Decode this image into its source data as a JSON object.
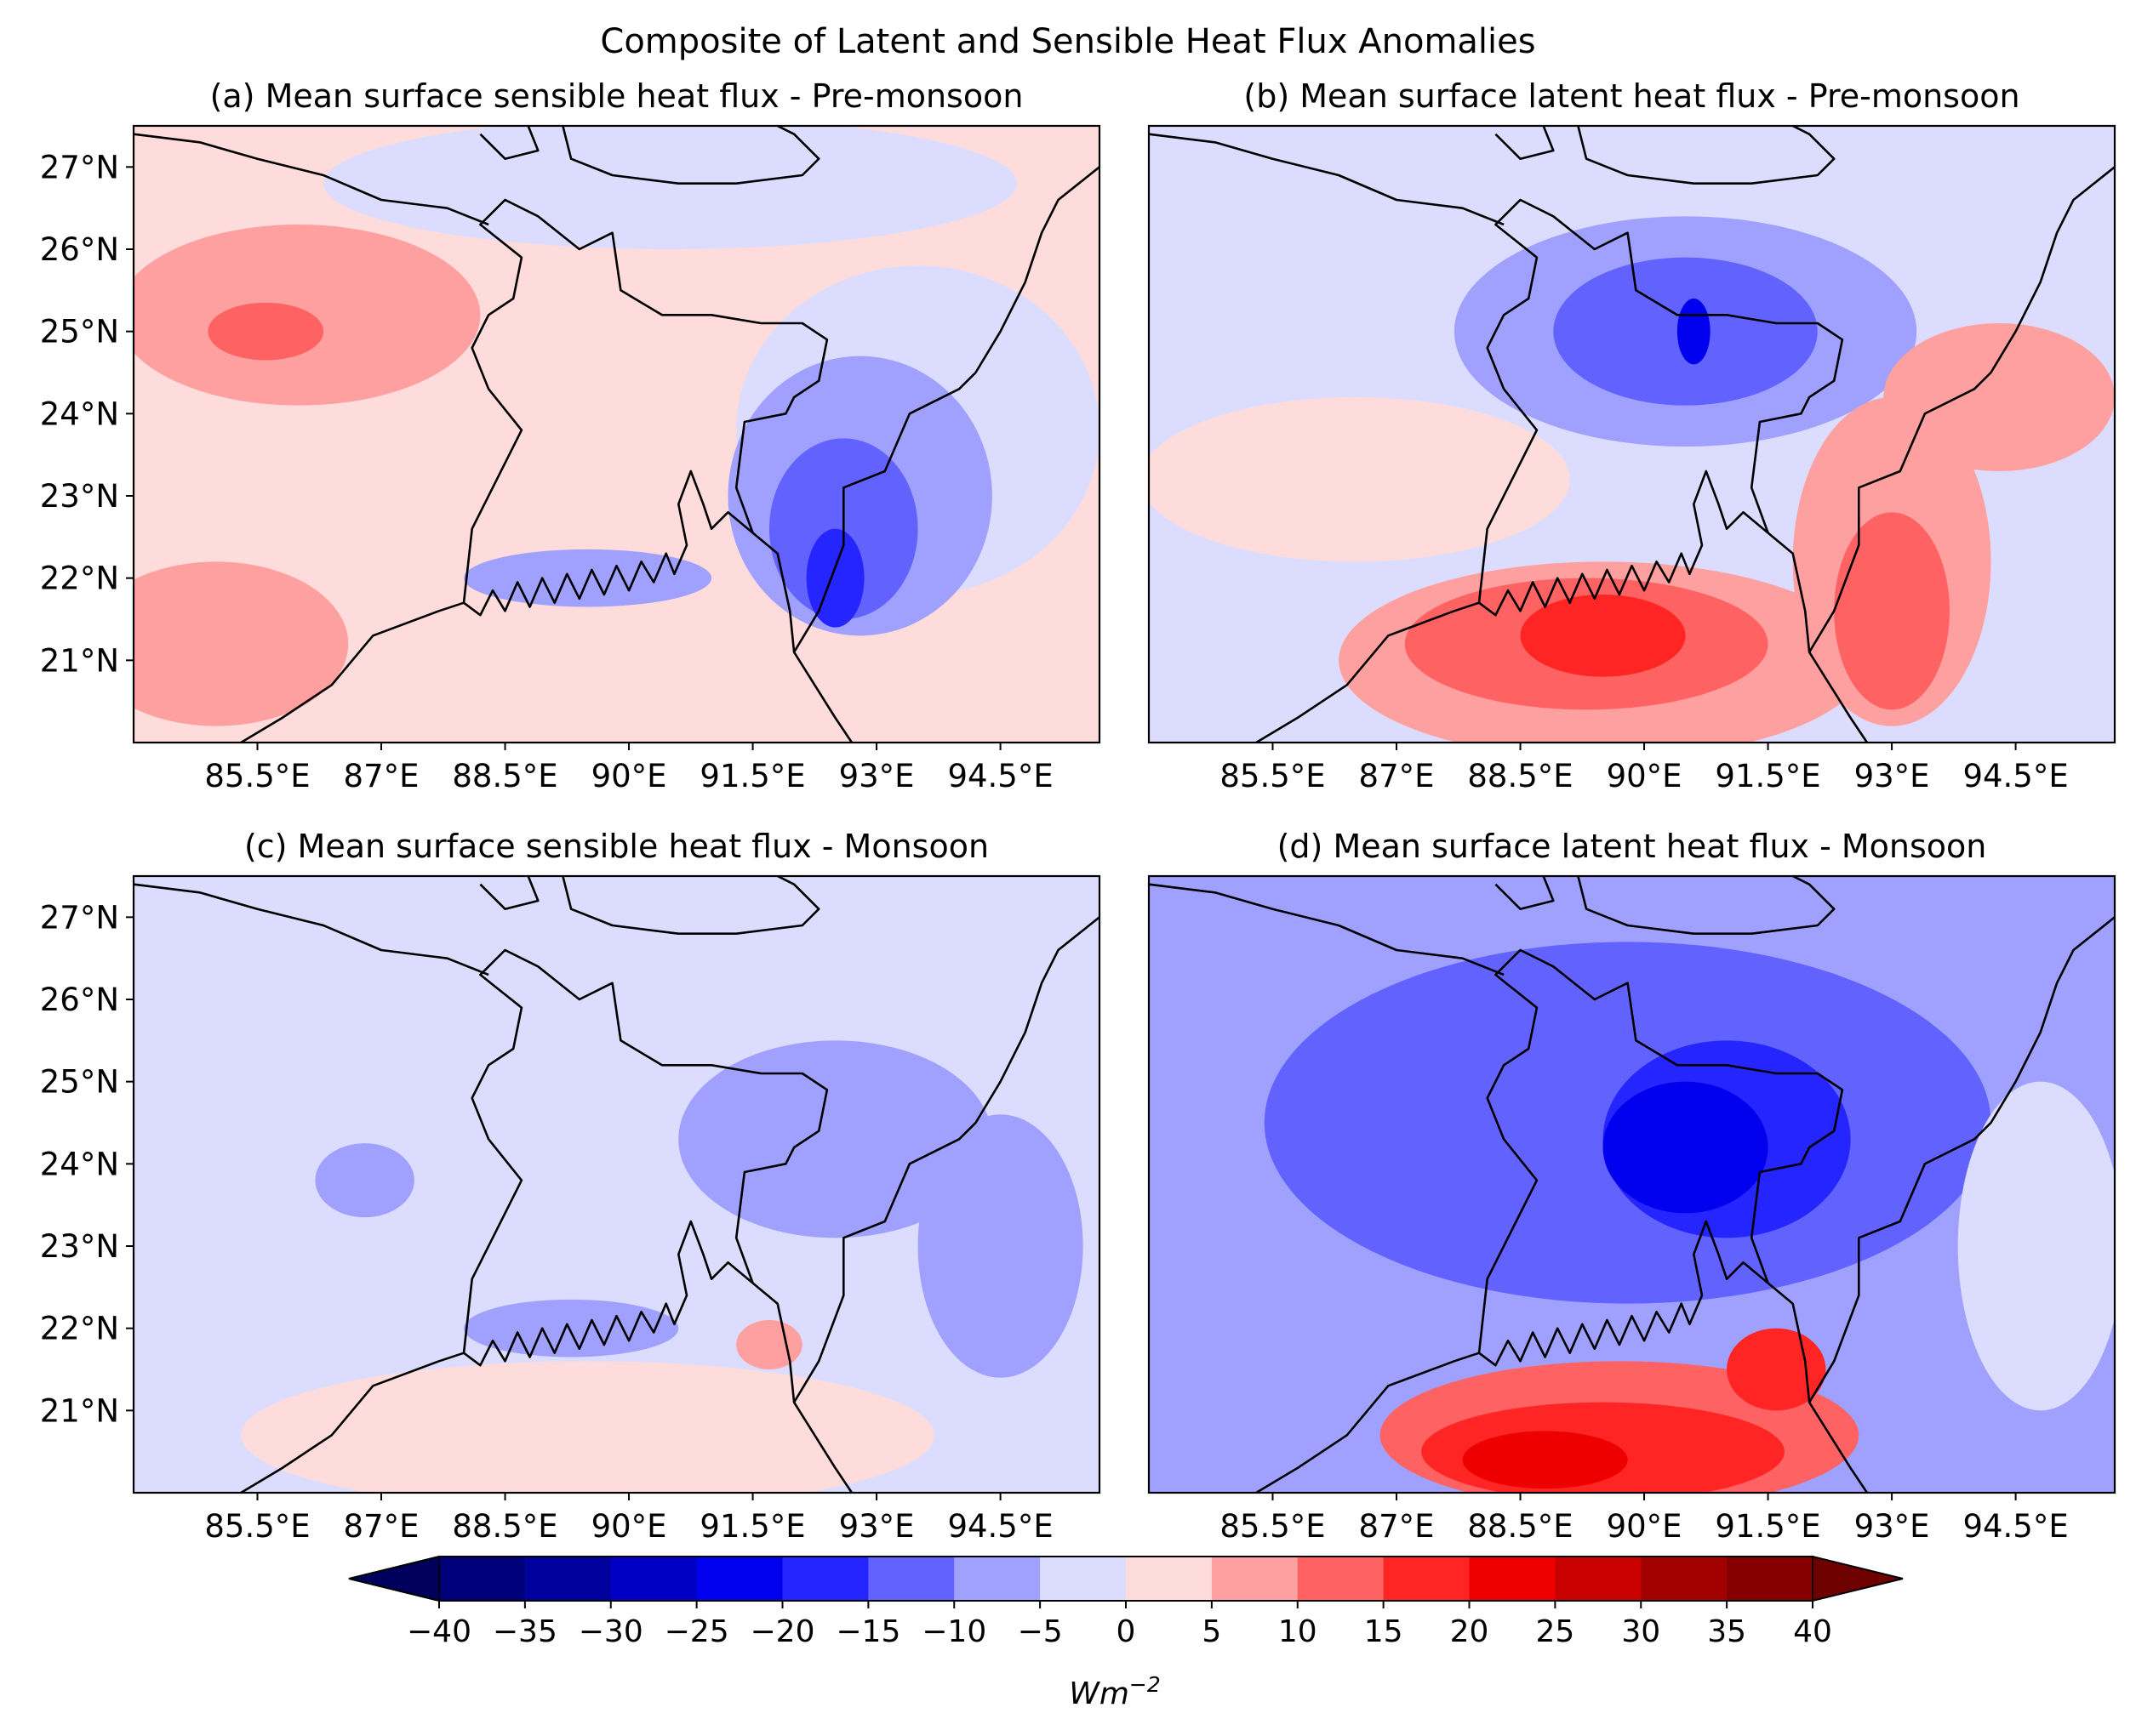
{
  "figure": {
    "title": "Composite of Latent and Sensible Heat Flux Anomalies"
  },
  "chart_data": [
    {
      "type": "heatmap",
      "title": "(a) Mean surface sensible heat flux - Pre-monsoon",
      "x_ticks": [
        "85.5°E",
        "87°E",
        "88.5°E",
        "90°E",
        "91.5°E",
        "93°E",
        "94.5°E"
      ],
      "y_ticks": [
        "27°N",
        "26°N",
        "25°N",
        "24°N",
        "23°N",
        "22°N",
        "21°N"
      ],
      "x_tick_values": [
        85.5,
        87,
        88.5,
        90,
        91.5,
        93,
        94.5
      ],
      "y_tick_values": [
        27,
        26,
        25,
        24,
        23,
        22,
        21
      ],
      "xlim": [
        84,
        95.7
      ],
      "ylim": [
        20,
        27.5
      ],
      "background_level": 2.5,
      "features": [
        {
          "lon": 86.0,
          "lat": 25.2,
          "rx": 2.2,
          "ry": 1.1,
          "value": 7.5
        },
        {
          "lon": 85.6,
          "lat": 25.0,
          "rx": 0.7,
          "ry": 0.35,
          "value": 12.5
        },
        {
          "lon": 85.0,
          "lat": 21.2,
          "rx": 1.6,
          "ry": 1.0,
          "value": 7.5
        },
        {
          "lon": 90.5,
          "lat": 26.8,
          "rx": 4.2,
          "ry": 0.8,
          "value": -2.5
        },
        {
          "lon": 89.5,
          "lat": 22.0,
          "rx": 1.5,
          "ry": 0.35,
          "value": -7.5
        },
        {
          "lon": 93.5,
          "lat": 23.8,
          "rx": 2.2,
          "ry": 2.0,
          "value": -2.5
        },
        {
          "lon": 92.8,
          "lat": 23.0,
          "rx": 1.6,
          "ry": 1.7,
          "value": -7.5
        },
        {
          "lon": 92.6,
          "lat": 22.6,
          "rx": 0.9,
          "ry": 1.1,
          "value": -12.5
        },
        {
          "lon": 92.5,
          "lat": 22.0,
          "rx": 0.35,
          "ry": 0.6,
          "value": -17.5
        }
      ]
    },
    {
      "type": "heatmap",
      "title": "(b) Mean surface latent heat flux - Pre-monsoon",
      "x_ticks": [
        "85.5°E",
        "87°E",
        "88.5°E",
        "90°E",
        "91.5°E",
        "93°E",
        "94.5°E"
      ],
      "y_ticks": [],
      "x_tick_values": [
        85.5,
        87,
        88.5,
        90,
        91.5,
        93,
        94.5
      ],
      "y_tick_values": [],
      "xlim": [
        84,
        95.7
      ],
      "ylim": [
        20,
        27.5
      ],
      "background_level": -2.5,
      "features": [
        {
          "lon": 86.5,
          "lat": 23.2,
          "rx": 2.6,
          "ry": 1.0,
          "value": 2.5
        },
        {
          "lon": 90.5,
          "lat": 25.0,
          "rx": 2.8,
          "ry": 1.4,
          "value": -7.5
        },
        {
          "lon": 90.5,
          "lat": 25.0,
          "rx": 1.6,
          "ry": 0.9,
          "value": -12.5
        },
        {
          "lon": 90.6,
          "lat": 25.0,
          "rx": 0.2,
          "ry": 0.4,
          "value": -22.5
        },
        {
          "lon": 89.5,
          "lat": 21.0,
          "rx": 3.2,
          "ry": 1.2,
          "value": 7.5
        },
        {
          "lon": 89.3,
          "lat": 21.2,
          "rx": 2.2,
          "ry": 0.8,
          "value": 12.5
        },
        {
          "lon": 89.5,
          "lat": 21.3,
          "rx": 1.0,
          "ry": 0.5,
          "value": 17.5
        },
        {
          "lon": 93.0,
          "lat": 22.2,
          "rx": 1.2,
          "ry": 2.0,
          "value": 7.5
        },
        {
          "lon": 93.0,
          "lat": 21.6,
          "rx": 0.7,
          "ry": 1.2,
          "value": 12.5
        },
        {
          "lon": 94.3,
          "lat": 24.2,
          "rx": 1.4,
          "ry": 0.9,
          "value": 7.5
        }
      ]
    },
    {
      "type": "heatmap",
      "title": "(c) Mean surface sensible heat flux - Monsoon",
      "x_ticks": [
        "85.5°E",
        "87°E",
        "88.5°E",
        "90°E",
        "91.5°E",
        "93°E",
        "94.5°E"
      ],
      "y_ticks": [
        "27°N",
        "26°N",
        "25°N",
        "24°N",
        "23°N",
        "22°N",
        "21°N"
      ],
      "x_tick_values": [
        85.5,
        87,
        88.5,
        90,
        91.5,
        93,
        94.5
      ],
      "y_tick_values": [
        27,
        26,
        25,
        24,
        23,
        22,
        21
      ],
      "xlim": [
        84,
        95.7
      ],
      "ylim": [
        20,
        27.5
      ],
      "background_level": -2.5,
      "features": [
        {
          "lon": 89.5,
          "lat": 20.7,
          "rx": 4.2,
          "ry": 0.9,
          "value": 2.5
        },
        {
          "lon": 92.5,
          "lat": 24.3,
          "rx": 1.9,
          "ry": 1.2,
          "value": -7.5
        },
        {
          "lon": 94.5,
          "lat": 23.0,
          "rx": 1.0,
          "ry": 1.6,
          "value": -7.5
        },
        {
          "lon": 89.3,
          "lat": 22.0,
          "rx": 1.3,
          "ry": 0.35,
          "value": -7.5
        },
        {
          "lon": 86.8,
          "lat": 23.8,
          "rx": 0.6,
          "ry": 0.45,
          "value": -7.5
        },
        {
          "lon": 91.7,
          "lat": 21.8,
          "rx": 0.4,
          "ry": 0.3,
          "value": 7.5
        }
      ]
    },
    {
      "type": "heatmap",
      "title": "(d) Mean surface latent heat flux - Monsoon",
      "x_ticks": [
        "85.5°E",
        "87°E",
        "88.5°E",
        "90°E",
        "91.5°E",
        "93°E",
        "94.5°E"
      ],
      "y_ticks": [],
      "x_tick_values": [
        85.5,
        87,
        88.5,
        90,
        91.5,
        93,
        94.5
      ],
      "y_tick_values": [],
      "xlim": [
        84,
        95.7
      ],
      "ylim": [
        20,
        27.5
      ],
      "background_level": -7.5,
      "features": [
        {
          "lon": 89.8,
          "lat": 24.5,
          "rx": 4.4,
          "ry": 2.2,
          "value": -12.5
        },
        {
          "lon": 91.0,
          "lat": 24.3,
          "rx": 1.5,
          "ry": 1.2,
          "value": -17.5
        },
        {
          "lon": 90.5,
          "lat": 24.2,
          "rx": 1.0,
          "ry": 0.8,
          "value": -22.5
        },
        {
          "lon": 94.8,
          "lat": 23.0,
          "rx": 1.0,
          "ry": 2.0,
          "value": -2.5
        },
        {
          "lon": 89.7,
          "lat": 20.7,
          "rx": 2.9,
          "ry": 0.9,
          "value": 12.5
        },
        {
          "lon": 89.5,
          "lat": 20.5,
          "rx": 2.2,
          "ry": 0.6,
          "value": 17.5
        },
        {
          "lon": 88.8,
          "lat": 20.4,
          "rx": 1.0,
          "ry": 0.35,
          "value": 22.5
        },
        {
          "lon": 91.6,
          "lat": 21.5,
          "rx": 0.6,
          "ry": 0.5,
          "value": 17.5
        }
      ]
    }
  ],
  "colorbar": {
    "levels": [
      -40,
      -35,
      -30,
      -25,
      -20,
      -15,
      -10,
      -5,
      0,
      5,
      10,
      15,
      20,
      25,
      30,
      35,
      40
    ],
    "colors": [
      "#00007a",
      "#00009c",
      "#0000c4",
      "#0000ee",
      "#2525ff",
      "#6262ff",
      "#a0a0ff",
      "#dcdcfe",
      "#fedcdc",
      "#ffa0a0",
      "#ff6262",
      "#ff2525",
      "#ee0000",
      "#c90000",
      "#a30000",
      "#840000"
    ],
    "under_color": "#00005c",
    "over_color": "#6e0000",
    "tick_labels": [
      "−40",
      "−35",
      "−30",
      "−25",
      "−20",
      "−15",
      "−10",
      "−5",
      "0",
      "5",
      "10",
      "15",
      "20",
      "25",
      "30",
      "35",
      "40"
    ],
    "unit": "Wm",
    "unit_exp": "−2"
  },
  "coast_color": "#000000"
}
